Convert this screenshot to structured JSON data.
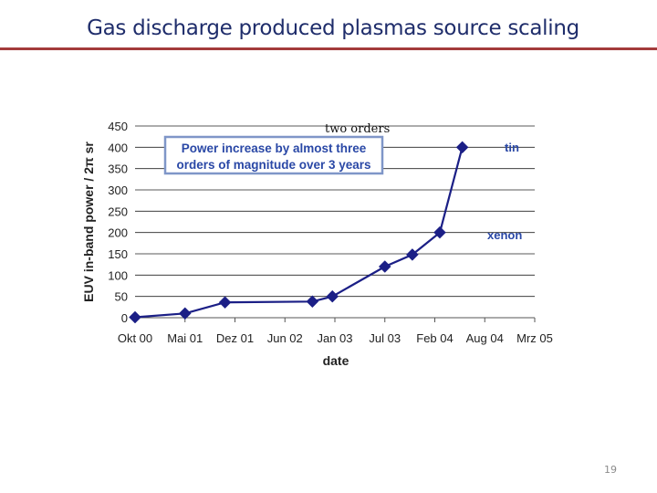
{
  "slide": {
    "title": "Gas discharge produced plasmas source scaling",
    "page_number": "19"
  },
  "chart_data": {
    "type": "line",
    "xlabel": "date",
    "ylabel": "EUV in-band power / 2π sr",
    "ylim": [
      0,
      450
    ],
    "yticks": [
      0,
      50,
      100,
      150,
      200,
      250,
      300,
      350,
      400,
      450
    ],
    "x_tick_labels": [
      "Okt 00",
      "Mai 01",
      "Dez 01",
      "Jun 02",
      "Jan 03",
      "Jul 03",
      "Feb 04",
      "Aug 04",
      "Mrz 05"
    ],
    "grid": "horizontal",
    "series": [
      {
        "name": "",
        "color": "#1b1f86",
        "marker": "diamond",
        "points": [
          {
            "x": 0.0,
            "y": 1
          },
          {
            "x": 1.0,
            "y": 10
          },
          {
            "x": 1.8,
            "y": 36
          },
          {
            "x": 3.55,
            "y": 38
          },
          {
            "x": 3.95,
            "y": 50
          },
          {
            "x": 5.0,
            "y": 120
          },
          {
            "x": 5.55,
            "y": 148
          },
          {
            "x": 6.1,
            "y": 200
          },
          {
            "x": 6.55,
            "y": 400
          }
        ]
      }
    ],
    "annotations": {
      "tin": "tin",
      "xenon": "xenon",
      "callout_line1": "Power increase by almost three",
      "callout_line2": "orders of magnitude over 3 years",
      "note": "two orders"
    }
  },
  "colors": {
    "title": "#1f2d6b",
    "rule": "#a33b3b",
    "series": "#1b1f86",
    "annotation": "#2a48a6"
  }
}
